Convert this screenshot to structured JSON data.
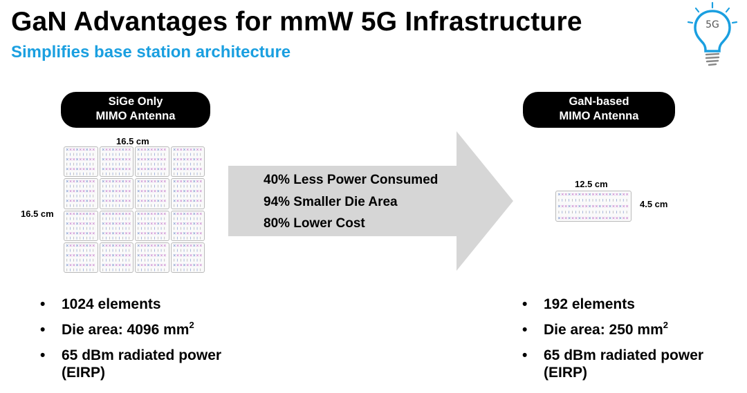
{
  "header": {
    "title": "GaN Advantages for mmW 5G Infrastructure",
    "subtitle": "Simplifies base station architecture",
    "logo_text": "5G"
  },
  "left_panel": {
    "pill_line1": "SiGe Only",
    "pill_line2": "MIMO Antenna",
    "width_label": "16.5 cm",
    "height_label": "16.5 cm",
    "bullets": [
      {
        "text": "1024 elements",
        "sup": ""
      },
      {
        "text": "Die area: 4096 mm",
        "sup": "2"
      },
      {
        "text": "65 dBm radiated power (EIRP)",
        "sup": ""
      }
    ]
  },
  "center_arrow": {
    "lines": [
      "40% Less Power Consumed",
      "94% Smaller Die Area",
      "80% Lower Cost"
    ]
  },
  "right_panel": {
    "pill_line1": "GaN-based",
    "pill_line2": "MIMO Antenna",
    "width_label": "12.5 cm",
    "height_label": "4.5 cm",
    "bullets": [
      {
        "text": "192 elements",
        "sup": ""
      },
      {
        "text": "Die area: 250 mm",
        "sup": "2"
      },
      {
        "text": "65 dBm radiated power (EIRP)",
        "sup": ""
      }
    ]
  },
  "colors": {
    "subtitle": "#1a9fe0",
    "pill_bg": "#000000",
    "arrow_fill": "#d6d6d6",
    "element_magenta": "#c070c8",
    "element_blue": "#6a86c8"
  },
  "icons": {
    "logo": "lightbulb-5g-icon",
    "bullet": "bullet-dot-icon"
  }
}
